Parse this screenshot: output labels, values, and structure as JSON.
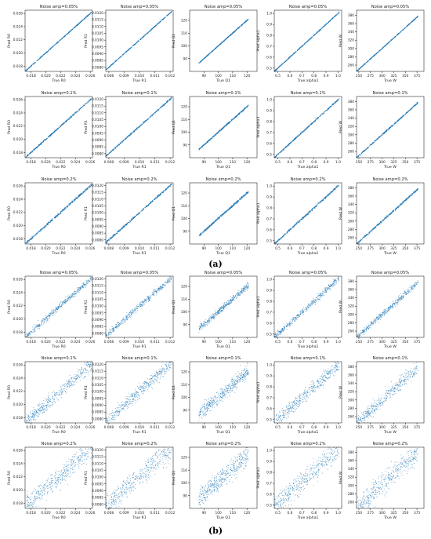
{
  "captions": {
    "a": "(a)",
    "b": "(b)"
  },
  "colors": {
    "marker": "#1f77b4",
    "axis": "#000000",
    "text": "#222222"
  },
  "chart_data": {
    "type": "scatter",
    "panel_groups": [
      "a",
      "b"
    ],
    "noise_levels": [
      "0.05%",
      "0.1%",
      "0.2%"
    ],
    "title_prefix": "Noise amp=",
    "x_label_prefix": "True ",
    "y_label_prefix": "Pred ",
    "spread_by_group_row": {
      "a": [
        0.004,
        0.006,
        0.008
      ],
      "b": [
        0.025,
        0.055,
        0.085
      ]
    },
    "parameters": [
      {
        "name": "R0",
        "xlim": [
          0.0172,
          0.0263
        ],
        "ylim": [
          0.0172,
          0.0265
        ],
        "x_ticks": [
          0.018,
          0.02,
          0.022,
          0.024,
          0.026
        ],
        "x_tick_labels": [
          "0.018",
          "0.020",
          "0.022",
          "0.024",
          "0.026"
        ],
        "y_ticks": [
          0.018,
          0.02,
          0.022,
          0.024,
          0.026
        ],
        "y_tick_labels": [
          "0.018",
          "0.020",
          "0.022",
          "0.024",
          "0.026"
        ]
      },
      {
        "name": "R1",
        "xlim": [
          0.0078,
          0.0122
        ],
        "ylim": [
          0.0077,
          0.0122
        ],
        "x_ticks": [
          0.008,
          0.009,
          0.01,
          0.011,
          0.012
        ],
        "x_tick_labels": [
          "0.008",
          "0.009",
          "0.010",
          "0.011",
          "0.012"
        ],
        "y_ticks": [
          0.008,
          0.0085,
          0.009,
          0.0095,
          0.01,
          0.0105,
          0.011,
          0.0115,
          0.012
        ],
        "y_tick_labels": [
          "0.0080",
          "0.0085",
          "0.0090",
          "0.0095",
          "0.0100",
          "0.0105",
          "0.0110",
          "0.0115",
          "0.0120"
        ]
      },
      {
        "name": "Q1",
        "xlim": [
          80,
          127
        ],
        "ylim": [
          80,
          128
        ],
        "x_ticks": [
          90,
          100,
          110,
          120
        ],
        "x_tick_labels": [
          "90",
          "100",
          "110",
          "120"
        ],
        "y_ticks": [
          90,
          100,
          110,
          120
        ],
        "y_tick_labels": [
          "90",
          "100",
          "110",
          "120"
        ]
      },
      {
        "name": "alpha1",
        "xlim": [
          0.47,
          1.03
        ],
        "ylim": [
          0.47,
          1.03
        ],
        "x_ticks": [
          0.5,
          0.6,
          0.7,
          0.8,
          0.9,
          1.0
        ],
        "x_tick_labels": [
          "0.5",
          "0.6",
          "0.7",
          "0.8",
          "0.9",
          "1.0"
        ],
        "y_ticks": [
          0.5,
          0.6,
          0.7,
          0.8,
          0.9,
          1.0
        ],
        "y_tick_labels": [
          "0.5",
          "0.6",
          "0.7",
          "0.8",
          "0.9",
          "1.0"
        ]
      },
      {
        "name": "W",
        "xlim": [
          245,
          390
        ],
        "ylim": [
          245,
          392
        ],
        "x_ticks": [
          250,
          275,
          300,
          325,
          350,
          375
        ],
        "x_tick_labels": [
          "250",
          "275",
          "300",
          "325",
          "350",
          "375"
        ],
        "y_ticks": [
          260,
          280,
          300,
          320,
          340,
          360,
          380
        ],
        "y_tick_labels": [
          "260",
          "280",
          "300",
          "320",
          "340",
          "360",
          "380"
        ]
      }
    ]
  }
}
